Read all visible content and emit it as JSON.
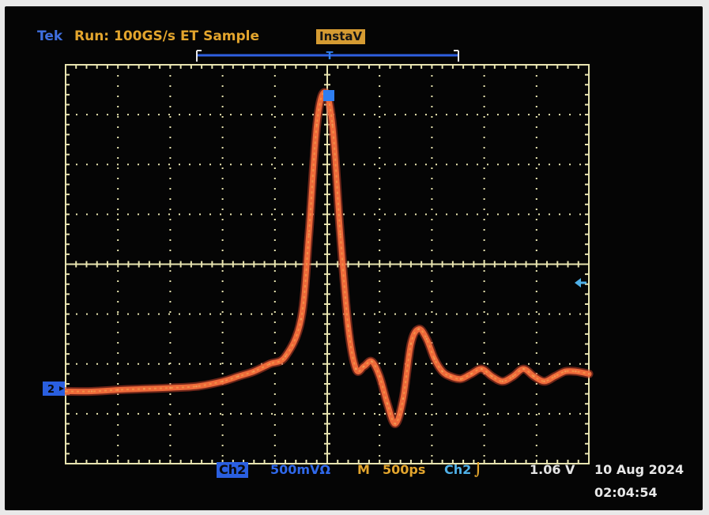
{
  "header": {
    "brand": "Tek",
    "status": "Run: 100GS/s ET  Sample",
    "mode": "InstaV",
    "trigger_position_marker": "T"
  },
  "footer": {
    "channel": "Ch2",
    "scale": "500mVΩ",
    "timebase_prefix": "M",
    "timebase": "500ps",
    "trigger_channel": "Ch2",
    "trigger_slope": "⌡",
    "trigger_level": "1.06 V",
    "date": "10 Aug 2024",
    "time": "02:04:54"
  },
  "channel_marker": "2",
  "colors": {
    "trace": "#ee6a3a",
    "grid": "#e8e4b0",
    "brand": "#3f6fe0",
    "status": "#e3a52d",
    "channel": "#2a5fe0"
  },
  "chart_data": {
    "type": "line",
    "title": "",
    "xlabel": "",
    "ylabel": "",
    "x_divisions": 10,
    "y_divisions": 8,
    "xlim": [
      0,
      10
    ],
    "ylim": [
      -4,
      4
    ],
    "grid": true,
    "series": [
      {
        "x": [
          0,
          0.5,
          1.0,
          1.5,
          2.0,
          2.5,
          3.0,
          3.3,
          3.6,
          3.9,
          4.2,
          4.5,
          4.65,
          4.8,
          4.95,
          5.1,
          5.25,
          5.4,
          5.55,
          5.7,
          5.85,
          6.0,
          6.15,
          6.3,
          6.45,
          6.6,
          6.75,
          6.9,
          7.05,
          7.2,
          7.35,
          7.55,
          7.75,
          7.95,
          8.15,
          8.35,
          8.55,
          8.75,
          8.95,
          9.15,
          9.35,
          9.55,
          9.75,
          10.0
        ],
        "y": [
          -2.55,
          -2.55,
          -2.52,
          -2.5,
          -2.48,
          -2.45,
          -2.35,
          -2.25,
          -2.15,
          -2.0,
          -1.85,
          -1.1,
          0.6,
          2.8,
          3.45,
          2.8,
          0.6,
          -1.25,
          -2.1,
          -2.05,
          -1.95,
          -2.25,
          -2.8,
          -3.2,
          -2.7,
          -1.6,
          -1.3,
          -1.5,
          -1.9,
          -2.15,
          -2.25,
          -2.3,
          -2.2,
          -2.1,
          -2.25,
          -2.35,
          -2.25,
          -2.1,
          -2.25,
          -2.35,
          -2.25,
          -2.15,
          -2.15,
          -2.2
        ]
      }
    ]
  }
}
